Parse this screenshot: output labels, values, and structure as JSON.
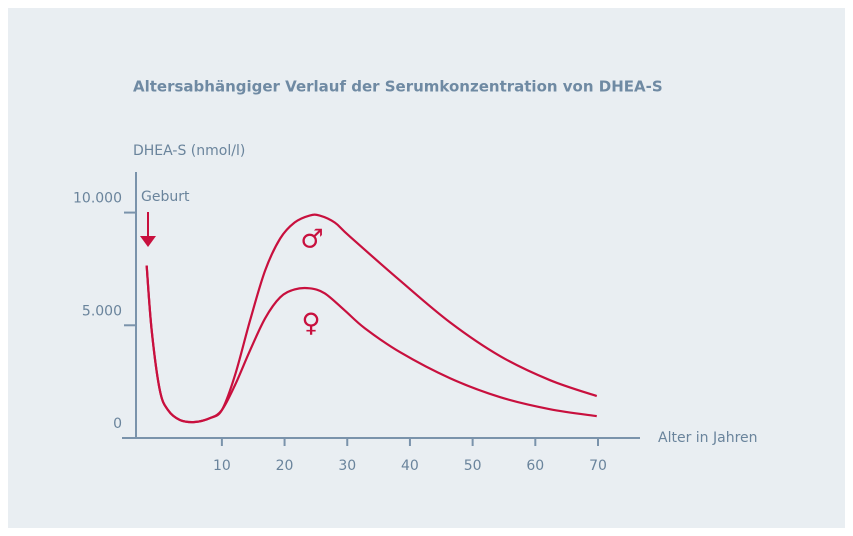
{
  "chart_data": {
    "type": "line",
    "title": "Altersabhängiger Verlauf der Serumkonzentration von DHEA-S",
    "y_label": "DHEA-S (nmol/l)",
    "x_label": "Alter in Jahren",
    "annotations": [
      "Geburt"
    ],
    "xlim": [
      -3.7,
      76.7
    ],
    "xticks": [
      10,
      20,
      30,
      40,
      50,
      60,
      70
    ],
    "ylim": [
      0,
      11800
    ],
    "yticks": [
      0,
      {
        "value": 5000,
        "label": "5.000"
      },
      {
        "value": 10000,
        "label": "10.000"
      }
    ],
    "series": [
      {
        "name": "♂",
        "color": "#c8103e",
        "x": [
          -2,
          -1.2,
          0.1,
          1.4,
          3.3,
          5.7,
          8.1,
          10,
          12.1,
          14.5,
          16.9,
          19.3,
          21.6,
          24,
          25.6,
          28,
          30.4,
          38.4,
          46.4,
          54.4,
          62.3,
          69.8
        ],
        "values": [
          7650,
          4780,
          2120,
          1240,
          800,
          710,
          880,
          1240,
          2790,
          5220,
          7430,
          8850,
          9560,
          9870,
          9870,
          9560,
          8940,
          6990,
          5130,
          3630,
          2570,
          1860
        ]
      },
      {
        "name": "♀",
        "color": "#c8103e",
        "x": [
          -2,
          -1.2,
          0.1,
          1.4,
          3.3,
          5.7,
          8.1,
          10,
          12.1,
          14.5,
          16.9,
          19.3,
          21.6,
          24,
          26.4,
          29.6,
          32.8,
          38.4,
          46.4,
          54.4,
          62.3,
          69.8
        ],
        "values": [
          7650,
          4780,
          2120,
          1240,
          800,
          710,
          880,
          1240,
          2350,
          3890,
          5310,
          6240,
          6590,
          6640,
          6420,
          5660,
          4870,
          3810,
          2650,
          1810,
          1280,
          970
        ]
      }
    ]
  }
}
